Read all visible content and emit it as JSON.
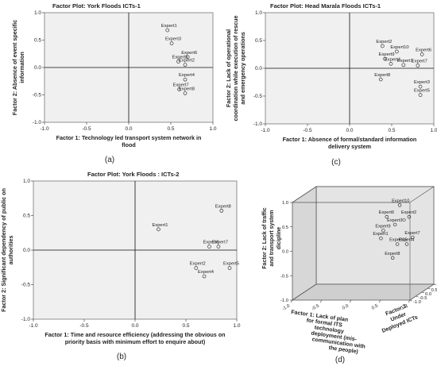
{
  "chart_data": [
    {
      "type": "scatter",
      "title": "Factor Plot: York Floods ICTs-1",
      "caption": "(a)",
      "xlabel": [
        "Factor 1: Technology led transport system network in",
        "flood"
      ],
      "ylabel": [
        "Factor 2: Absence of event specific",
        "information"
      ],
      "xlim": [
        -1.0,
        1.0
      ],
      "ylim": [
        -1.0,
        1.0
      ],
      "xticks": [
        "-1.0",
        "-0.5",
        "0.0",
        "0.5",
        "1.0"
      ],
      "yticks": [
        "1.0",
        "0.5",
        "0.0",
        "-0.5",
        "-1.0"
      ],
      "tick_values": [
        -1.0,
        -0.5,
        0.0,
        0.5,
        1.0
      ],
      "points": [
        {
          "label": "Expert1",
          "x": 0.46,
          "y": 0.68
        },
        {
          "label": "Expert3",
          "x": 0.51,
          "y": 0.44
        },
        {
          "label": "Expert6",
          "x": 0.7,
          "y": 0.19
        },
        {
          "label": "Expert5",
          "x": 0.59,
          "y": 0.11
        },
        {
          "label": "Expert2",
          "x": 0.67,
          "y": 0.05
        },
        {
          "label": "Expert4",
          "x": 0.67,
          "y": -0.22
        },
        {
          "label": "Expert7",
          "x": 0.6,
          "y": -0.4
        },
        {
          "label": "Expert8",
          "x": 0.67,
          "y": -0.47
        }
      ]
    },
    {
      "type": "scatter",
      "title": "Factor Plot: Head Marala Floods ICTs-1",
      "caption": "(c)",
      "xlabel": [
        "Factor 1: Absence of formal/standard information",
        "delivery system"
      ],
      "ylabel": [
        "Factor 2: Lack of operational",
        "coordination while execution of rescue",
        "and emergency operations"
      ],
      "xlim": [
        -1.0,
        1.0
      ],
      "ylim": [
        -1.0,
        1.0
      ],
      "xticks": [
        "-1.0",
        "-0.5",
        "0.0",
        "0.5",
        "1.0"
      ],
      "yticks": [
        "1.0",
        "0.5",
        "0.0",
        "-0.5",
        "-1.0"
      ],
      "tick_values": [
        -1.0,
        -0.5,
        0.0,
        0.5,
        1.0
      ],
      "points": [
        {
          "label": "Expert2",
          "x": 0.39,
          "y": 0.4
        },
        {
          "label": "Expert10",
          "x": 0.56,
          "y": 0.3
        },
        {
          "label": "Expert6",
          "x": 0.86,
          "y": 0.25
        },
        {
          "label": "Expert9",
          "x": 0.42,
          "y": 0.17
        },
        {
          "label": "Expert4",
          "x": 0.49,
          "y": 0.08
        },
        {
          "label": "Expert1",
          "x": 0.64,
          "y": 0.06
        },
        {
          "label": "Expert7",
          "x": 0.81,
          "y": 0.05
        },
        {
          "label": "Expert8",
          "x": 0.37,
          "y": -0.2
        },
        {
          "label": "Expert3",
          "x": 0.84,
          "y": -0.33
        },
        {
          "label": "Expert5",
          "x": 0.84,
          "y": -0.48
        }
      ]
    },
    {
      "type": "scatter",
      "title": "Factor Plot: York Floods : ICTs-2",
      "caption": "(b)",
      "xlabel": [
        "Factor 1: Time and resource efficiency (addressing the obvious on",
        "priority basis with minimum effort to enquire about)"
      ],
      "ylabel": [
        "Factor 2: Significant dependency of public on",
        "authorities"
      ],
      "xlim": [
        -1.0,
        1.0
      ],
      "ylim": [
        -1.0,
        1.0
      ],
      "xticks": [
        "-1.0",
        "-0.5",
        "0.0",
        "0.5",
        "1.0"
      ],
      "yticks": [
        "1.0",
        "0.5",
        "0.0",
        "-0.5",
        "-1.0"
      ],
      "tick_values": [
        -1.0,
        -0.5,
        0.0,
        0.5,
        1.0
      ],
      "points": [
        {
          "label": "Expert8",
          "x": 0.85,
          "y": 0.57
        },
        {
          "label": "Expert1",
          "x": 0.23,
          "y": 0.3
        },
        {
          "label": "Expert7",
          "x": 0.82,
          "y": 0.05
        },
        {
          "label": "Expert6",
          "x": 0.73,
          "y": 0.05
        },
        {
          "label": "Expert5",
          "x": 0.93,
          "y": -0.26
        },
        {
          "label": "Expert2",
          "x": 0.6,
          "y": -0.26
        },
        {
          "label": "Expert4",
          "x": 0.68,
          "y": -0.38
        }
      ]
    },
    {
      "type": "scatter3d",
      "caption": "(d)",
      "xlabel": [
        "Factor 1: Lack of plan",
        "for formal ITS",
        "technology",
        "deployment (mis-",
        "communication with",
        "the people)"
      ],
      "ylabel": [
        "Factor 2: Lack of traffic",
        "and transport system",
        "dicipline"
      ],
      "zlabel": [
        "Factor 3:",
        "Under",
        "Deployed ICTs"
      ],
      "tick_labels": [
        "-1.0",
        "-0.5",
        "0.0",
        "0.5",
        "1.0"
      ],
      "tick_values": [
        -1.0,
        -0.5,
        0.0,
        0.5,
        1.0
      ],
      "points": [
        {
          "label": "Expert10",
          "x": 0.42,
          "y": 0.62
        },
        {
          "label": "Expert6",
          "x": 0.2,
          "y": 0.38
        },
        {
          "label": "Expert2",
          "x": 0.58,
          "y": 0.38
        },
        {
          "label": "Expert3O",
          "x": 0.34,
          "y": 0.22
        },
        {
          "label": "Expert9",
          "x": 0.14,
          "y": 0.1
        },
        {
          "label": "Expert1",
          "x": 0.1,
          "y": -0.06
        },
        {
          "label": "Expert7",
          "x": 0.64,
          "y": -0.04
        },
        {
          "label": "Expert15",
          "x": 0.38,
          "y": -0.18
        },
        {
          "label": "Expert4",
          "x": 0.54,
          "y": -0.18
        },
        {
          "label": "Expert8",
          "x": 0.3,
          "y": -0.46
        }
      ]
    }
  ]
}
